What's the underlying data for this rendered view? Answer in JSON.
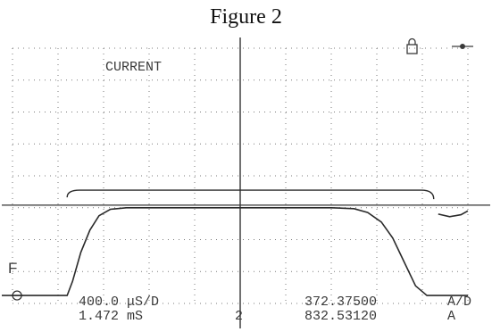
{
  "figure_title": "Figure 2",
  "colors": {
    "trace": "#2a2a2a",
    "grid": "#7a7a7a",
    "text": "#3a3a3a"
  },
  "icons": [
    "lock-icon",
    "cursor-marker-icon"
  ],
  "chart_data": {
    "type": "line",
    "title": "",
    "channel_label": "CURRENT",
    "trigger_marker": "F",
    "grid": true,
    "readouts": {
      "timebase": "400.0 μS/D",
      "time_position": "1.472 mS",
      "channel_number": "2",
      "scale_value": "372.37500",
      "scale_unit": "A/D",
      "cursor_value": "832.53120",
      "cursor_unit": "A"
    },
    "x_unit": "div",
    "y_unit": "div",
    "xlim": [
      0,
      10
    ],
    "ylim": [
      0,
      8
    ],
    "series": [
      {
        "values": [
          [
            0,
            0.25
          ],
          [
            1.2,
            0.25
          ],
          [
            1.32,
            0.7
          ],
          [
            1.5,
            1.6
          ],
          [
            1.7,
            2.3
          ],
          [
            1.9,
            2.75
          ],
          [
            2.15,
            2.95
          ],
          [
            2.5,
            3.0
          ],
          [
            4.0,
            3.0
          ],
          [
            6.0,
            3.0
          ],
          [
            7.0,
            3.0
          ],
          [
            7.5,
            2.97
          ],
          [
            7.8,
            2.85
          ],
          [
            8.1,
            2.55
          ],
          [
            8.35,
            2.05
          ],
          [
            8.6,
            1.3
          ],
          [
            8.85,
            0.55
          ],
          [
            9.1,
            0.25
          ],
          [
            10.0,
            0.25
          ]
        ]
      },
      {
        "values": [
          [
            9.35,
            2.8
          ],
          [
            9.6,
            2.72
          ],
          [
            9.85,
            2.78
          ],
          [
            10.0,
            2.9
          ]
        ]
      }
    ],
    "reference_level": 3.08,
    "bracket": {
      "x_start": 1.2,
      "x_end": 9.25,
      "y": 3.55
    }
  }
}
